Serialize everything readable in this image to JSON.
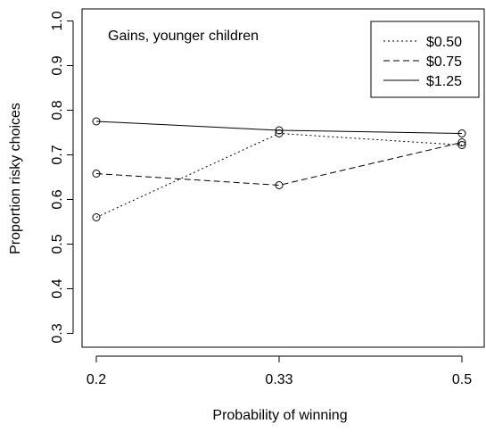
{
  "chart_data": {
    "type": "line",
    "title": "Gains, younger children",
    "xlabel": "Probability of winning",
    "ylabel": "Proportion risky choices",
    "x": [
      0.2,
      0.33,
      0.5
    ],
    "x_tick_labels": [
      "0.2",
      "0.33",
      "0.5"
    ],
    "y_ticks": [
      0.3,
      0.4,
      0.5,
      0.6,
      0.7,
      0.8,
      0.9,
      1.0
    ],
    "y_tick_labels": [
      "0.3",
      "0.4",
      "0.5",
      "0.6",
      "0.7",
      "0.8",
      "0.9",
      "1.0"
    ],
    "ylim": [
      0.28,
      1.02
    ],
    "grid": false,
    "legend_position": "top-right",
    "series": [
      {
        "name": "$0.50",
        "line_style": "dotted",
        "values": [
          0.56,
          0.748,
          0.722
        ]
      },
      {
        "name": "$0.75",
        "line_style": "dashed",
        "values": [
          0.658,
          0.632,
          0.728
        ]
      },
      {
        "name": "$1.25",
        "line_style": "solid",
        "values": [
          0.775,
          0.755,
          0.748
        ]
      }
    ]
  }
}
